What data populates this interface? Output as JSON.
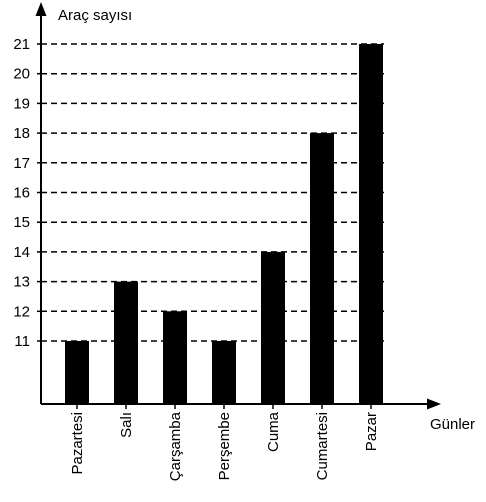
{
  "chart_data": {
    "type": "bar",
    "ylabel": "Araç sayısı",
    "xlabel": "Günler",
    "categories": [
      "Pazartesi",
      "Salı",
      "Çarşamba",
      "Perşembe",
      "Cuma",
      "Cumartesi",
      "Pazar"
    ],
    "values": [
      11,
      13,
      12,
      11,
      14,
      18,
      21
    ],
    "yticks": [
      11,
      12,
      13,
      14,
      15,
      16,
      17,
      18,
      19,
      20,
      21
    ],
    "grid": "dashed horizontal",
    "colors": {
      "bar": "#000000",
      "axis": "#000000",
      "grid": "#000000"
    }
  }
}
